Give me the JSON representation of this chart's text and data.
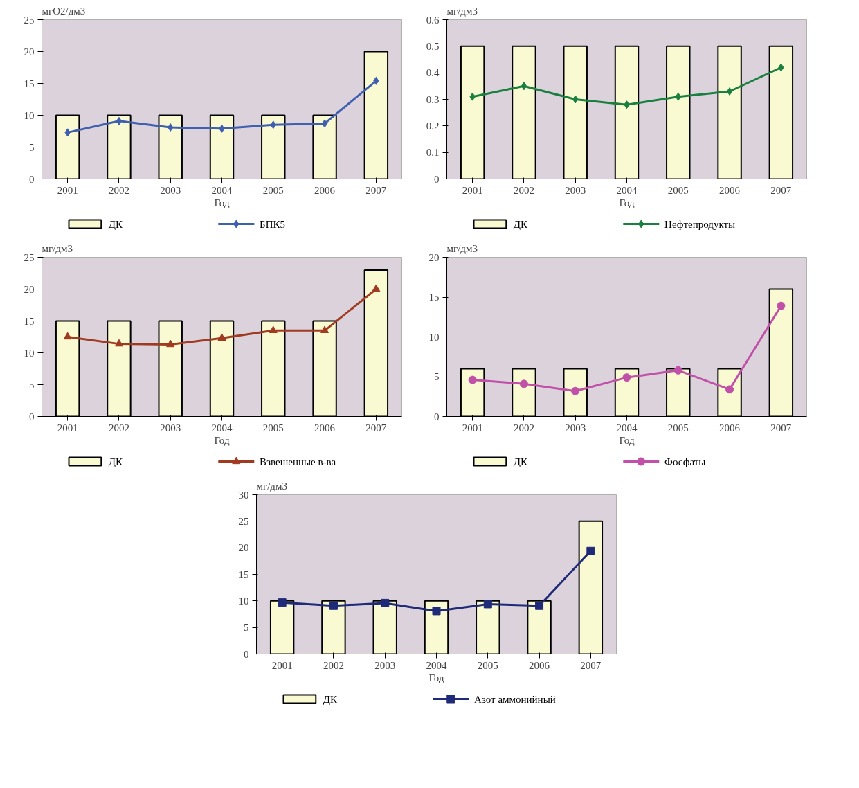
{
  "chart_data": [
    {
      "type": "bar",
      "ylabel": "мгO2/дм3",
      "xlabel": "Год",
      "categories": [
        "2001",
        "2002",
        "2003",
        "2004",
        "2005",
        "2006",
        "2007"
      ],
      "ylim": [
        0,
        25
      ],
      "yticks": [
        0,
        5,
        10,
        15,
        20,
        25
      ],
      "legend": "bottom",
      "series": [
        {
          "name": "ДК",
          "color": "#fafad2",
          "values": [
            10,
            10,
            10,
            10,
            10,
            10,
            20
          ]
        },
        {
          "name": "БПК5",
          "type": "line",
          "marker": "diamond",
          "color": "#3f5fb0",
          "values": [
            7.3,
            9.1,
            8.1,
            7.9,
            8.5,
            8.7,
            15.4
          ]
        }
      ]
    },
    {
      "type": "bar",
      "ylabel": "мг/дм3",
      "xlabel": "Год",
      "categories": [
        "2001",
        "2002",
        "2003",
        "2004",
        "2005",
        "2006",
        "2007"
      ],
      "ylim": [
        0,
        0.6
      ],
      "yticks": [
        0,
        0.1,
        0.2,
        0.3,
        0.4,
        0.5,
        0.6
      ],
      "legend": "bottom",
      "series": [
        {
          "name": "ДК",
          "color": "#fafad2",
          "values": [
            0.5,
            0.5,
            0.5,
            0.5,
            0.5,
            0.5,
            0.5
          ]
        },
        {
          "name": "Нефтепродукты",
          "type": "line",
          "marker": "diamond",
          "color": "#1a8040",
          "values": [
            0.31,
            0.35,
            0.3,
            0.28,
            0.31,
            0.33,
            0.42
          ]
        }
      ]
    },
    {
      "type": "bar",
      "ylabel": "мг/дм3",
      "xlabel": "Год",
      "categories": [
        "2001",
        "2002",
        "2003",
        "2004",
        "2005",
        "2006",
        "2007"
      ],
      "ylim": [
        0,
        25
      ],
      "yticks": [
        0,
        5,
        10,
        15,
        20,
        25
      ],
      "legend": "bottom",
      "series": [
        {
          "name": "ДК",
          "color": "#fafad2",
          "values": [
            15,
            15,
            15,
            15,
            15,
            15,
            23
          ]
        },
        {
          "name": "Взвешенные в-ва",
          "type": "line",
          "marker": "triangle",
          "color": "#a03a20",
          "values": [
            12.5,
            11.4,
            11.3,
            12.3,
            13.5,
            13.5,
            20
          ]
        }
      ]
    },
    {
      "type": "bar",
      "ylabel": "мг/дм3",
      "xlabel": "Год",
      "categories": [
        "2001",
        "2002",
        "2003",
        "2004",
        "2005",
        "2006",
        "2007"
      ],
      "ylim": [
        0,
        20
      ],
      "yticks": [
        0,
        5,
        10,
        15,
        20
      ],
      "legend": "bottom",
      "series": [
        {
          "name": "ДК",
          "color": "#fafad2",
          "values": [
            6,
            6,
            6,
            6,
            6,
            6,
            16
          ]
        },
        {
          "name": "Фосфаты",
          "type": "line",
          "marker": "circle",
          "color": "#c050a8",
          "values": [
            4.6,
            4.1,
            3.2,
            4.9,
            5.8,
            3.4,
            13.9
          ]
        }
      ]
    },
    {
      "type": "bar",
      "ylabel": "мг/дм3",
      "xlabel": "Год",
      "categories": [
        "2001",
        "2002",
        "2003",
        "2004",
        "2005",
        "2006",
        "2007"
      ],
      "ylim": [
        0,
        30
      ],
      "yticks": [
        0,
        5,
        10,
        15,
        20,
        25,
        30
      ],
      "legend": "bottom",
      "series": [
        {
          "name": "ДК",
          "color": "#fafad2",
          "values": [
            10,
            10,
            10,
            10,
            10,
            10,
            25
          ]
        },
        {
          "name": "Азот аммонийный",
          "type": "line",
          "marker": "square",
          "color": "#1f2a78",
          "values": [
            9.7,
            9.1,
            9.6,
            8.1,
            9.4,
            9.1,
            19.4
          ]
        }
      ]
    }
  ]
}
